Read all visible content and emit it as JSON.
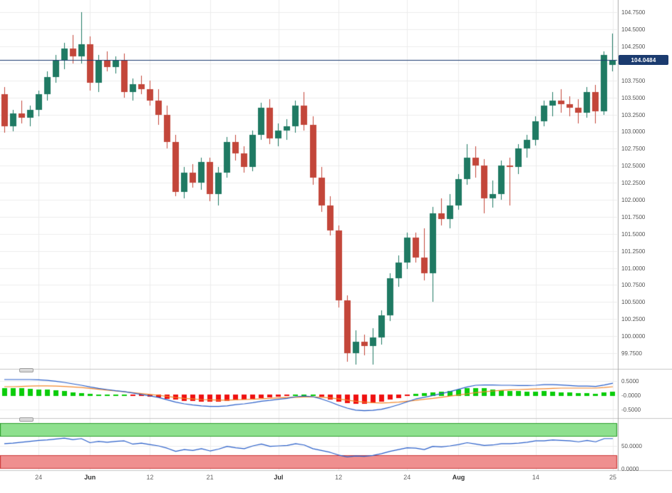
{
  "chart_data": {
    "type": "candlestick",
    "current_price": 104.0484,
    "current_price_label": "104.0484",
    "price_axis": {
      "min": 99.52,
      "max": 104.93,
      "tick_labels": [
        "104.7500",
        "104.5000",
        "104.2500",
        "103.7500",
        "103.5000",
        "103.2500",
        "103.0000",
        "102.7500",
        "102.5000",
        "102.2500",
        "102.0000",
        "101.7500",
        "101.5000",
        "101.2500",
        "101.0000",
        "100.7500",
        "100.5000",
        "100.2500",
        "100.0000",
        "99.7500"
      ]
    },
    "time_axis": {
      "tick_marks": [
        {
          "index": 4,
          "label": "24",
          "bold": false
        },
        {
          "index": 10,
          "label": "Jun",
          "bold": true
        },
        {
          "index": 17,
          "label": "12",
          "bold": false
        },
        {
          "index": 24,
          "label": "21",
          "bold": false
        },
        {
          "index": 32,
          "label": "Jul",
          "bold": true
        },
        {
          "index": 39,
          "label": "12",
          "bold": false
        },
        {
          "index": 47,
          "label": "24",
          "bold": false
        },
        {
          "index": 53,
          "label": "Aug",
          "bold": true
        },
        {
          "index": 62,
          "label": "14",
          "bold": false
        },
        {
          "index": 71,
          "label": "25",
          "bold": false
        }
      ]
    },
    "candles": [
      [
        103.55,
        103.65,
        102.98,
        103.08
      ],
      [
        103.08,
        103.32,
        103.0,
        103.27
      ],
      [
        103.27,
        103.45,
        103.12,
        103.2
      ],
      [
        103.2,
        103.38,
        103.08,
        103.32
      ],
      [
        103.32,
        103.6,
        103.22,
        103.55
      ],
      [
        103.55,
        103.88,
        103.45,
        103.8
      ],
      [
        103.8,
        104.12,
        103.72,
        104.05
      ],
      [
        104.05,
        104.3,
        103.92,
        104.22
      ],
      [
        104.22,
        104.42,
        104.0,
        104.1
      ],
      [
        104.1,
        104.75,
        104.0,
        104.28
      ],
      [
        104.28,
        104.4,
        103.6,
        103.72
      ],
      [
        103.72,
        104.12,
        103.58,
        104.05
      ],
      [
        104.05,
        104.18,
        103.88,
        103.95
      ],
      [
        103.95,
        104.1,
        103.85,
        104.05
      ],
      [
        104.05,
        104.15,
        103.5,
        103.58
      ],
      [
        103.58,
        103.78,
        103.45,
        103.7
      ],
      [
        103.7,
        103.82,
        103.55,
        103.62
      ],
      [
        103.62,
        103.75,
        103.38,
        103.45
      ],
      [
        103.45,
        103.62,
        103.1,
        103.25
      ],
      [
        103.25,
        103.38,
        102.75,
        102.85
      ],
      [
        102.85,
        102.95,
        102.05,
        102.12
      ],
      [
        102.12,
        102.48,
        102.02,
        102.4
      ],
      [
        102.4,
        102.52,
        102.18,
        102.25
      ],
      [
        102.25,
        102.62,
        102.15,
        102.55
      ],
      [
        102.55,
        102.62,
        101.98,
        102.08
      ],
      [
        102.08,
        102.48,
        101.92,
        102.4
      ],
      [
        102.4,
        102.92,
        102.32,
        102.85
      ],
      [
        102.85,
        102.95,
        102.58,
        102.68
      ],
      [
        102.68,
        102.78,
        102.4,
        102.48
      ],
      [
        102.48,
        103.02,
        102.42,
        102.95
      ],
      [
        102.95,
        103.42,
        102.88,
        103.35
      ],
      [
        103.35,
        103.48,
        102.82,
        102.9
      ],
      [
        102.9,
        103.12,
        102.78,
        103.02
      ],
      [
        103.02,
        103.18,
        102.88,
        103.08
      ],
      [
        103.08,
        103.45,
        102.98,
        103.38
      ],
      [
        103.38,
        103.58,
        103.02,
        103.1
      ],
      [
        103.1,
        103.22,
        102.22,
        102.32
      ],
      [
        102.32,
        102.48,
        101.82,
        101.92
      ],
      [
        101.92,
        102.05,
        101.48,
        101.55
      ],
      [
        101.55,
        101.62,
        100.42,
        100.52
      ],
      [
        100.52,
        100.6,
        99.62,
        99.75
      ],
      [
        99.75,
        100.08,
        99.58,
        99.92
      ],
      [
        99.92,
        100.02,
        99.72,
        99.85
      ],
      [
        99.85,
        100.12,
        99.58,
        99.98
      ],
      [
        99.98,
        100.38,
        99.88,
        100.3
      ],
      [
        100.3,
        100.92,
        100.22,
        100.85
      ],
      [
        100.85,
        101.18,
        100.72,
        101.08
      ],
      [
        101.08,
        101.52,
        100.98,
        101.45
      ],
      [
        101.45,
        101.52,
        101.08,
        101.15
      ],
      [
        101.15,
        101.58,
        100.82,
        100.92
      ],
      [
        100.92,
        101.9,
        100.5,
        101.8
      ],
      [
        101.8,
        102.02,
        101.62,
        101.72
      ],
      [
        101.72,
        102.08,
        101.58,
        101.92
      ],
      [
        101.92,
        102.38,
        101.85,
        102.3
      ],
      [
        102.3,
        102.82,
        102.22,
        102.62
      ],
      [
        102.62,
        102.78,
        102.32,
        102.5
      ],
      [
        102.5,
        102.6,
        101.8,
        102.02
      ],
      [
        102.02,
        102.28,
        101.88,
        102.08
      ],
      [
        102.08,
        102.58,
        102.0,
        102.5
      ],
      [
        102.5,
        102.62,
        101.92,
        102.48
      ],
      [
        102.48,
        102.82,
        102.38,
        102.75
      ],
      [
        102.75,
        102.95,
        102.62,
        102.88
      ],
      [
        102.88,
        103.22,
        102.8,
        103.15
      ],
      [
        103.15,
        103.45,
        103.08,
        103.38
      ],
      [
        103.38,
        103.58,
        103.22,
        103.45
      ],
      [
        103.45,
        103.62,
        103.28,
        103.4
      ],
      [
        103.4,
        103.52,
        103.22,
        103.35
      ],
      [
        103.35,
        103.48,
        103.12,
        103.28
      ],
      [
        103.28,
        103.65,
        103.2,
        103.58
      ],
      [
        103.58,
        103.68,
        103.12,
        103.3
      ],
      [
        103.3,
        104.18,
        103.25,
        104.12
      ],
      [
        103.98,
        104.44,
        103.88,
        104.05
      ]
    ],
    "macd": {
      "tick_labels": [
        "0.5000",
        "-0.0000",
        "-0.5000"
      ],
      "range": [
        -0.8,
        0.85
      ],
      "histogram": [
        0.25,
        0.25,
        0.24,
        0.23,
        0.21,
        0.19,
        0.17,
        0.14,
        0.11,
        0.08,
        0.05,
        0.03,
        0.02,
        0.01,
        0.01,
        -0.01,
        -0.03,
        -0.05,
        -0.08,
        -0.12,
        -0.16,
        -0.19,
        -0.21,
        -0.22,
        -0.23,
        -0.22,
        -0.2,
        -0.17,
        -0.15,
        -0.12,
        -0.09,
        -0.07,
        -0.05,
        -0.03,
        0.02,
        0.03,
        0.01,
        -0.06,
        -0.14,
        -0.22,
        -0.28,
        -0.31,
        -0.3,
        -0.27,
        -0.22,
        -0.16,
        -0.09,
        -0.02,
        0.05,
        0.07,
        0.1,
        0.13,
        0.16,
        0.2,
        0.24,
        0.26,
        0.24,
        0.21,
        0.18,
        0.16,
        0.14,
        0.13,
        0.13,
        0.14,
        0.13,
        0.11,
        0.09,
        0.07,
        0.07,
        0.06,
        0.09,
        0.12
      ],
      "macd_line": [
        0.55,
        0.55,
        0.55,
        0.55,
        0.54,
        0.52,
        0.49,
        0.45,
        0.4,
        0.35,
        0.29,
        0.24,
        0.2,
        0.16,
        0.13,
        0.08,
        0.03,
        -0.02,
        -0.08,
        -0.16,
        -0.24,
        -0.3,
        -0.34,
        -0.37,
        -0.39,
        -0.39,
        -0.37,
        -0.33,
        -0.3,
        -0.26,
        -0.21,
        -0.18,
        -0.14,
        -0.11,
        -0.05,
        -0.03,
        -0.05,
        -0.13,
        -0.23,
        -0.35,
        -0.45,
        -0.52,
        -0.54,
        -0.53,
        -0.49,
        -0.42,
        -0.33,
        -0.23,
        -0.13,
        -0.07,
        -0.01,
        0.06,
        0.13,
        0.21,
        0.29,
        0.35,
        0.36,
        0.36,
        0.35,
        0.35,
        0.34,
        0.34,
        0.35,
        0.37,
        0.37,
        0.36,
        0.34,
        0.32,
        0.32,
        0.31,
        0.36,
        0.42
      ],
      "signal_line": [
        0.3,
        0.3,
        0.31,
        0.32,
        0.33,
        0.33,
        0.32,
        0.31,
        0.29,
        0.27,
        0.24,
        0.21,
        0.18,
        0.15,
        0.12,
        0.09,
        0.06,
        0.03,
        0.0,
        -0.04,
        -0.08,
        -0.11,
        -0.13,
        -0.15,
        -0.16,
        -0.17,
        -0.17,
        -0.16,
        -0.15,
        -0.14,
        -0.12,
        -0.11,
        -0.09,
        -0.08,
        -0.07,
        -0.06,
        -0.06,
        -0.07,
        -0.09,
        -0.13,
        -0.17,
        -0.21,
        -0.24,
        -0.26,
        -0.27,
        -0.26,
        -0.24,
        -0.21,
        -0.18,
        -0.14,
        -0.11,
        -0.07,
        -0.03,
        0.01,
        0.05,
        0.09,
        0.12,
        0.15,
        0.17,
        0.19,
        0.2,
        0.21,
        0.22,
        0.23,
        0.24,
        0.25,
        0.25,
        0.25,
        0.25,
        0.25,
        0.27,
        0.3
      ]
    },
    "rsi": {
      "tick_labels": [
        "50.0000",
        "0.0000"
      ],
      "range": [
        0,
        100
      ],
      "overbought": 70,
      "oversold": 30,
      "values": [
        55,
        56,
        58,
        60,
        62,
        63,
        65,
        67,
        64,
        66,
        57,
        60,
        58,
        60,
        61,
        54,
        56,
        53,
        50,
        45,
        38,
        42,
        40,
        44,
        39,
        43,
        49,
        46,
        44,
        50,
        54,
        49,
        50,
        51,
        55,
        52,
        44,
        40,
        36,
        30,
        26,
        28,
        27,
        29,
        33,
        38,
        42,
        46,
        45,
        42,
        49,
        48,
        50,
        53,
        57,
        54,
        51,
        52,
        55,
        55,
        56,
        58,
        61,
        61,
        63,
        62,
        61,
        59,
        62,
        59,
        66,
        66
      ]
    },
    "colors": {
      "bull": "#1f7a63",
      "bear": "#c3463a",
      "hist_up": "#0acc0a",
      "hist_down": "#ef1010",
      "macd_line": "#2a5fc9",
      "signal_line": "#f2882c",
      "rsi_line": "#2a5fc9",
      "band_green_fill": "#8ee08e",
      "band_green_edge": "#2f9e2f",
      "band_red_fill": "#ef8f8f",
      "band_red_edge": "#cc3b3b",
      "price_line": "#1b3b6f",
      "badge_bg": "#1b3b6f",
      "badge_text": "#ffffff",
      "grid": "#ececec",
      "separator": "#c6c6c6",
      "axis_sep": "#aaaaaa",
      "axis_text": "#555555",
      "time_text": "#666666",
      "month_text": "#333333"
    }
  }
}
